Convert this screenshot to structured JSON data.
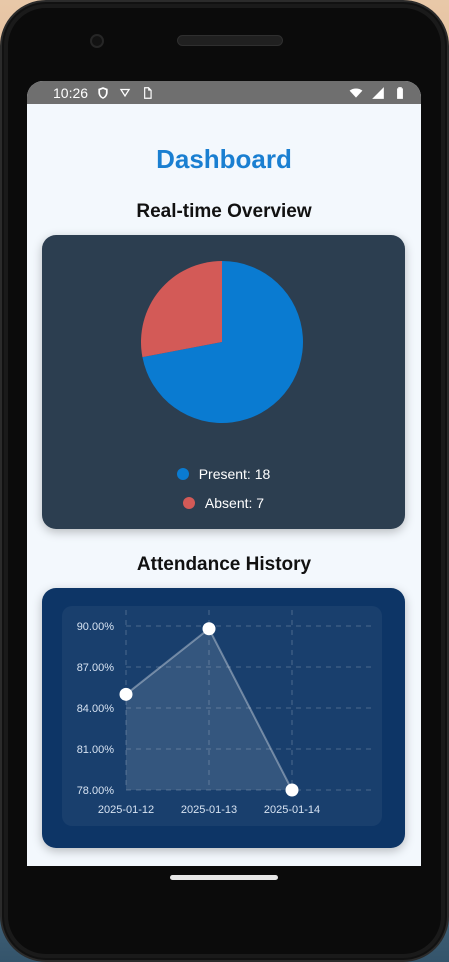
{
  "status_bar": {
    "time": "10:26",
    "icons_left": [
      "shield-icon",
      "vpn-icon",
      "sim-icon"
    ],
    "icons_right": [
      "wifi-icon",
      "signal-icon",
      "battery-icon"
    ]
  },
  "header": {
    "title": "Dashboard"
  },
  "sections": {
    "realtime_title": "Real-time Overview",
    "history_title": "Attendance History"
  },
  "legend": {
    "present_label": "Present: 18",
    "absent_label": "Absent: 7"
  },
  "colors": {
    "present": "#0a7bd1",
    "absent": "#d35a57",
    "title": "#1a7fd1",
    "pie_card": "#2c3e50",
    "line_card": "#0d3566"
  },
  "chart_data": [
    {
      "type": "pie",
      "slices": [
        {
          "name": "Present",
          "value": 18
        },
        {
          "name": "Absent",
          "value": 7
        }
      ]
    },
    {
      "type": "area",
      "x": [
        "2025-01-12",
        "2025-01-13",
        "2025-01-14"
      ],
      "values": [
        85.0,
        89.8,
        78.0
      ],
      "ylim": [
        78,
        90
      ],
      "y_ticks": [
        "90.00%",
        "87.00%",
        "84.00%",
        "81.00%",
        "78.00%"
      ],
      "grid": true
    }
  ]
}
